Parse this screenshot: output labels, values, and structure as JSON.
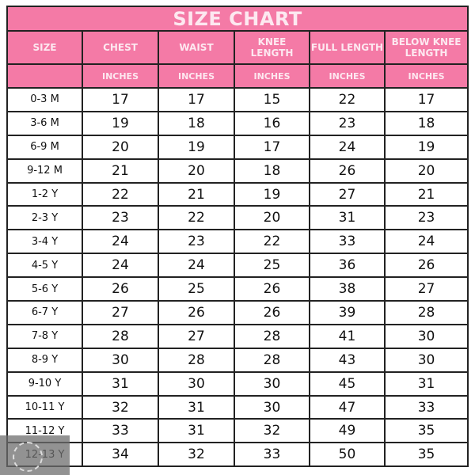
{
  "title": "SIZE CHART",
  "headers": [
    "SIZE",
    "CHEST",
    "WAIST",
    "KNEE LENGTH",
    "FULL LENGTH",
    "BELOW KNEE LENGTH"
  ],
  "units": [
    "",
    "INCHES",
    "INCHES",
    "INCHES",
    "INCHES",
    "INCHES"
  ],
  "rows": [
    [
      "0-3 M",
      "17",
      "17",
      "15",
      "22",
      "17"
    ],
    [
      "3-6 M",
      "19",
      "18",
      "16",
      "23",
      "18"
    ],
    [
      "6-9 M",
      "20",
      "19",
      "17",
      "24",
      "19"
    ],
    [
      "9-12 M",
      "21",
      "20",
      "18",
      "26",
      "20"
    ],
    [
      "1-2 Y",
      "22",
      "21",
      "19",
      "27",
      "21"
    ],
    [
      "2-3 Y",
      "23",
      "22",
      "20",
      "31",
      "23"
    ],
    [
      "3-4 Y",
      "24",
      "23",
      "22",
      "33",
      "24"
    ],
    [
      "4-5 Y",
      "24",
      "24",
      "25",
      "36",
      "26"
    ],
    [
      "5-6 Y",
      "26",
      "25",
      "26",
      "38",
      "27"
    ],
    [
      "6-7 Y",
      "27",
      "26",
      "26",
      "39",
      "28"
    ],
    [
      "7-8 Y",
      "28",
      "27",
      "28",
      "41",
      "30"
    ],
    [
      "8-9 Y",
      "30",
      "28",
      "28",
      "43",
      "30"
    ],
    [
      "9-10 Y",
      "31",
      "30",
      "30",
      "45",
      "31"
    ],
    [
      "10-11 Y",
      "32",
      "31",
      "30",
      "47",
      "33"
    ],
    [
      "11-12 Y",
      "33",
      "31",
      "32",
      "49",
      "35"
    ],
    [
      "12-13 Y",
      "34",
      "32",
      "33",
      "50",
      "35"
    ]
  ],
  "colors": {
    "header_pink": "#f47aa6",
    "header_text": "#fde8f0",
    "border": "#222222"
  }
}
